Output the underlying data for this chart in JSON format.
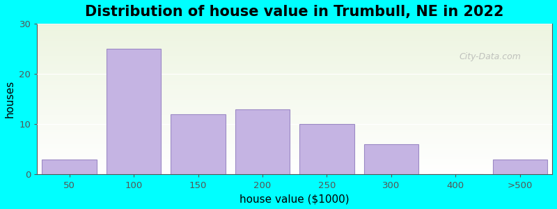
{
  "title": "Distribution of house value in Trumbull, NE in 2022",
  "xlabel": "house value ($1000)",
  "ylabel": "houses",
  "bar_labels": [
    "50",
    "100",
    "150",
    "200",
    "250",
    "300",
    "400",
    ">500"
  ],
  "bar_values": [
    3,
    25,
    12,
    13,
    10,
    6,
    0,
    3
  ],
  "bar_color": "#c5b4e3",
  "bar_edge_color": "#9b89c4",
  "ylim": [
    0,
    30
  ],
  "yticks": [
    0,
    10,
    20,
    30
  ],
  "outer_bg": "#00FFFF",
  "plot_bg_top": "#f0f5e8",
  "plot_bg_bottom": "#ffffff",
  "title_fontsize": 15,
  "axis_label_fontsize": 11,
  "watermark": "City-Data.com"
}
